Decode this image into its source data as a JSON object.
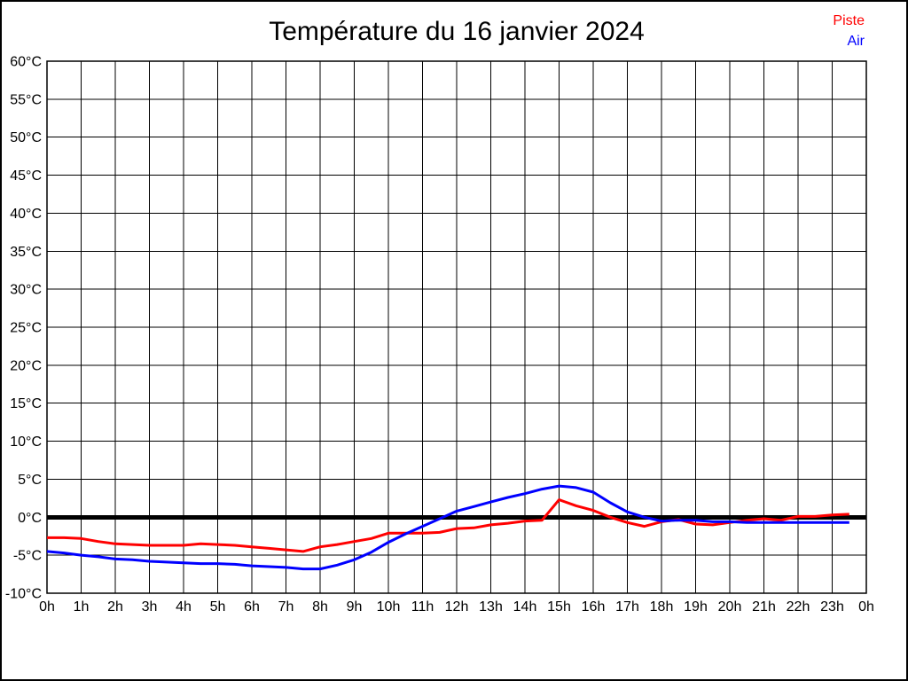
{
  "page": {
    "background": "#ffffff",
    "border_color": "#000000"
  },
  "chart_data": {
    "type": "line",
    "title": "Température du 16 janvier 2024",
    "xlabel": "",
    "ylabel": "",
    "xlim": [
      0,
      24
    ],
    "ylim": [
      -10,
      60
    ],
    "y_tick_step": 5,
    "x_tick_step_hours": 1,
    "grid": true,
    "grid_color": "#000000",
    "frame_color": "#000000",
    "legend_position": "top-right",
    "x_tick_labels": [
      "0h",
      "1h",
      "2h",
      "3h",
      "4h",
      "5h",
      "6h",
      "7h",
      "8h",
      "9h",
      "10h",
      "11h",
      "12h",
      "13h",
      "14h",
      "15h",
      "16h",
      "17h",
      "18h",
      "19h",
      "20h",
      "21h",
      "22h",
      "23h",
      "0h"
    ],
    "y_tick_labels": [
      "60°C",
      "55°C",
      "50°C",
      "45°C",
      "40°C",
      "35°C",
      "30°C",
      "25°C",
      "20°C",
      "15°C",
      "10°C",
      "5°C",
      "0°C",
      "-5°C",
      "-10°C"
    ],
    "zero_line": {
      "value": 0,
      "color": "#000000"
    },
    "x_start_hour": 0,
    "x_step_hours": 0.5,
    "series": [
      {
        "name": "Piste",
        "color": "#ff0000",
        "values": [
          -2.7,
          -2.7,
          -2.8,
          -3.2,
          -3.5,
          -3.6,
          -3.7,
          -3.7,
          -3.7,
          -3.5,
          -3.6,
          -3.7,
          -3.9,
          -4.1,
          -4.3,
          -4.5,
          -3.9,
          -3.6,
          -3.2,
          -2.8,
          -2.1,
          -2.1,
          -2.1,
          -2.0,
          -1.5,
          -1.4,
          -1.0,
          -0.8,
          -0.5,
          -0.4,
          2.3,
          1.5,
          0.9,
          0.0,
          -0.7,
          -1.2,
          -0.6,
          -0.3,
          -0.9,
          -1.0,
          -0.7,
          -0.4,
          -0.2,
          -0.4,
          0.1,
          0.1,
          0.3,
          0.4
        ]
      },
      {
        "name": "Air",
        "color": "#0000ff",
        "values": [
          -4.5,
          -4.7,
          -5.0,
          -5.2,
          -5.5,
          -5.6,
          -5.8,
          -5.9,
          -6.0,
          -6.1,
          -6.1,
          -6.2,
          -6.4,
          -6.5,
          -6.6,
          -6.8,
          -6.8,
          -6.3,
          -5.6,
          -4.6,
          -3.3,
          -2.2,
          -1.2,
          -0.2,
          0.8,
          1.4,
          2.0,
          2.6,
          3.1,
          3.7,
          4.1,
          3.9,
          3.3,
          1.9,
          0.7,
          0.0,
          -0.5,
          -0.4,
          -0.4,
          -0.6,
          -0.6,
          -0.7,
          -0.7,
          -0.7,
          -0.7,
          -0.7,
          -0.7,
          -0.7
        ]
      }
    ]
  }
}
